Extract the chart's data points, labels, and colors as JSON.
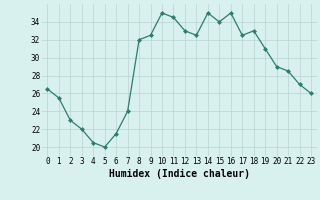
{
  "x": [
    0,
    1,
    2,
    3,
    4,
    5,
    6,
    7,
    8,
    9,
    10,
    11,
    12,
    13,
    14,
    15,
    16,
    17,
    18,
    19,
    20,
    21,
    22,
    23
  ],
  "y": [
    26.5,
    25.5,
    23.0,
    22.0,
    20.5,
    20.0,
    21.5,
    24.0,
    32.0,
    32.5,
    35.0,
    34.5,
    33.0,
    32.5,
    35.0,
    34.0,
    35.0,
    32.5,
    33.0,
    31.0,
    29.0,
    28.5,
    27.0,
    26.0
  ],
  "line_color": "#2e7d6e",
  "marker": "D",
  "marker_size": 2.0,
  "bg_color": "#d8f0ee",
  "grid_color": "#b8d4d0",
  "xlabel": "Humidex (Indice chaleur)",
  "xlim": [
    -0.5,
    23.5
  ],
  "ylim": [
    19,
    36
  ],
  "yticks": [
    20,
    22,
    24,
    26,
    28,
    30,
    32,
    34
  ],
  "xticks": [
    0,
    1,
    2,
    3,
    4,
    5,
    6,
    7,
    8,
    9,
    10,
    11,
    12,
    13,
    14,
    15,
    16,
    17,
    18,
    19,
    20,
    21,
    22,
    23
  ],
  "tick_label_fontsize": 5.5,
  "xlabel_fontsize": 7.0
}
